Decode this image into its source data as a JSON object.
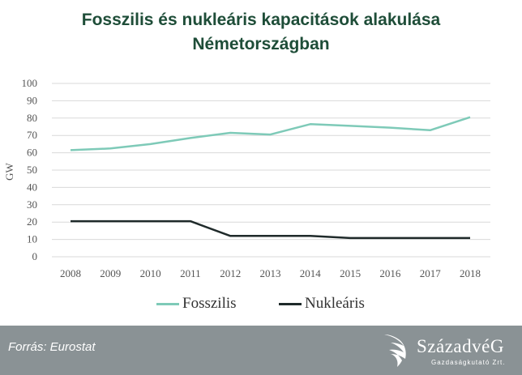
{
  "chart_data": {
    "type": "line",
    "title": "Fosszilis és nukleáris kapacitások alakulása Németországban",
    "title_lines": [
      "Fosszilis és nukleáris kapacitások alakulása",
      "Németországban"
    ],
    "xlabel": "",
    "ylabel": "GW",
    "x": [
      "2008",
      "2009",
      "2010",
      "2011",
      "2012",
      "2013",
      "2014",
      "2015",
      "2016",
      "2017",
      "2018"
    ],
    "ylim": [
      0,
      100
    ],
    "yticks": [
      0,
      10,
      20,
      30,
      40,
      50,
      60,
      70,
      80,
      90,
      100
    ],
    "grid": true,
    "legend": "bottom",
    "series": [
      {
        "name": "Fosszilis",
        "color": "#7ecab8",
        "values": [
          61.5,
          62.5,
          65,
          68.5,
          71.5,
          70.5,
          76.5,
          75.5,
          74.5,
          73,
          80.5
        ]
      },
      {
        "name": "Nukleáris",
        "color": "#1f2a2a",
        "values": [
          20.5,
          20.5,
          20.5,
          20.5,
          12,
          12,
          12,
          10.8,
          10.8,
          10.8,
          10.8
        ]
      }
    ]
  },
  "footer": {
    "source": "Forrás: Eurostat",
    "logo_name": "SzázadvéG",
    "logo_sub": "Gazdaságkutató Zrt."
  }
}
